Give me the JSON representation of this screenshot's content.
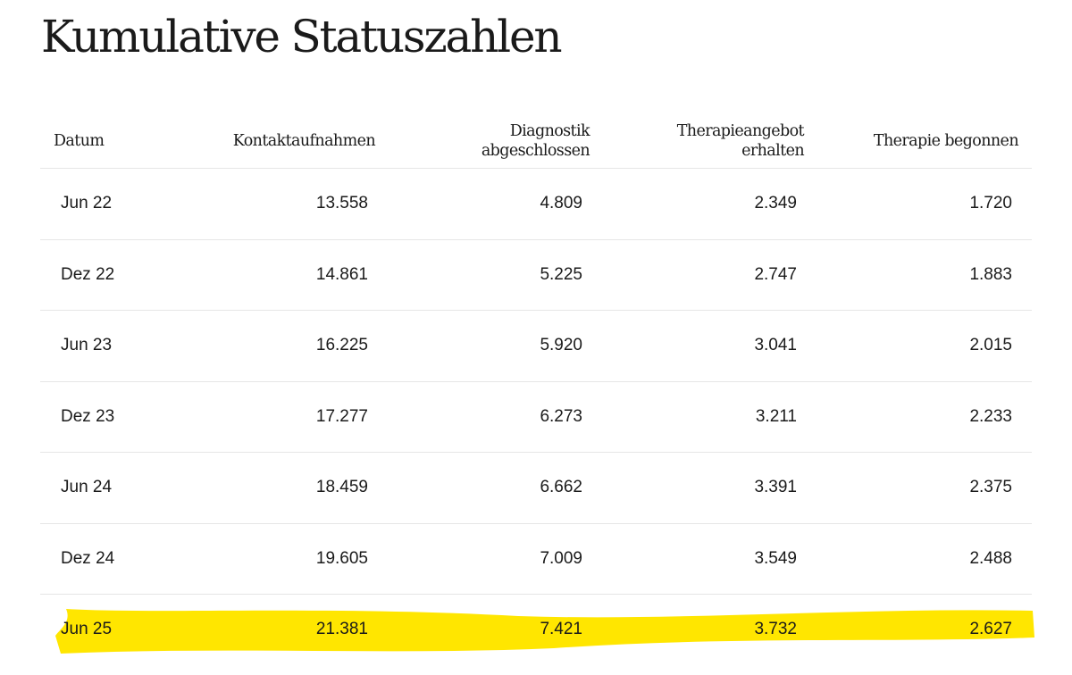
{
  "title": "Kumulative Statuszahlen",
  "colors": {
    "highlight": "#ffe600",
    "divider": "#e6e6e6",
    "text": "#1a1a1a"
  },
  "table": {
    "headers": [
      [
        "Datum"
      ],
      [
        "Kontaktaufnahmen"
      ],
      [
        "Diagnostik",
        "abgeschlossen"
      ],
      [
        "Therapieangebot",
        "erhalten"
      ],
      [
        "Therapie begonnen"
      ]
    ],
    "rows": [
      [
        "Jun 22",
        "13.558",
        "4.809",
        "2.349",
        "1.720"
      ],
      [
        "Dez 22",
        "14.861",
        "5.225",
        "2.747",
        "1.883"
      ],
      [
        "Jun 23",
        "16.225",
        "5.920",
        "3.041",
        "2.015"
      ],
      [
        "Dez 23",
        "17.277",
        "6.273",
        "3.211",
        "2.233"
      ],
      [
        "Jun 24",
        "18.459",
        "6.662",
        "3.391",
        "2.375"
      ],
      [
        "Dez 24",
        "19.605",
        "7.009",
        "3.549",
        "2.488"
      ],
      [
        "Jun 25",
        "21.381",
        "7.421",
        "3.732",
        "2.627"
      ]
    ],
    "highlighted_row": 6
  }
}
